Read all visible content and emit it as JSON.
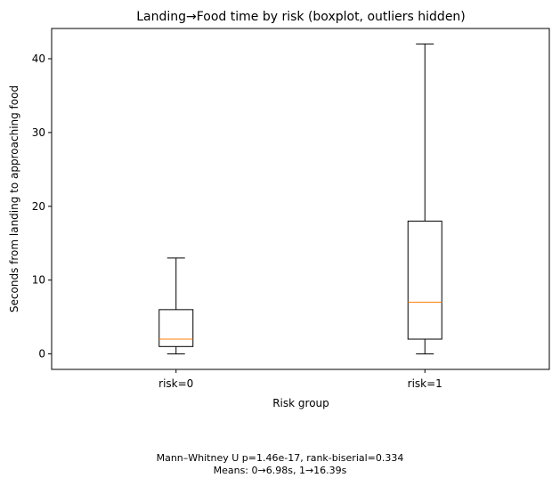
{
  "chart_data": {
    "type": "boxplot",
    "title": "Landing→Food time by risk (boxplot, outliers hidden)",
    "xlabel": "Risk group",
    "ylabel": "Seconds from landing to approaching food",
    "ylim": [
      -2.1,
      44.1
    ],
    "yticks": [
      0,
      10,
      20,
      30,
      40
    ],
    "categories": [
      "risk=0",
      "risk=1"
    ],
    "boxes": [
      {
        "category": "risk=0",
        "whisker_low": 0,
        "q1": 1,
        "median": 2,
        "q3": 6,
        "whisker_high": 13
      },
      {
        "category": "risk=1",
        "whisker_low": 0,
        "q1": 2,
        "median": 7,
        "q3": 18,
        "whisker_high": 42
      }
    ],
    "colors": {
      "box": "#000000",
      "median": "#ff7f0e"
    },
    "grid": false,
    "outliers_shown": false
  },
  "footnote": {
    "line1": "Mann–Whitney U p=1.46e-17, rank-biserial=0.334",
    "line2": "Means: 0→6.98s, 1→16.39s"
  }
}
